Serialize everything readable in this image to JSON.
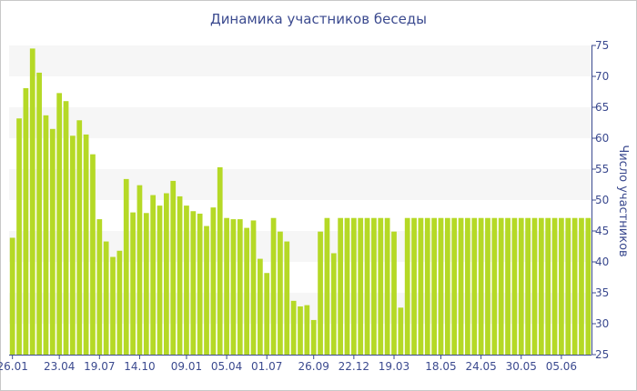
{
  "chart_data": {
    "type": "bar",
    "title": "Динамика участников беседы",
    "xlabel": "",
    "ylabel": "Число участников",
    "ylim": [
      25,
      75
    ],
    "y_ticks": [
      25,
      30,
      35,
      40,
      45,
      50,
      55,
      60,
      65,
      70,
      75
    ],
    "x_tick_labels": [
      {
        "label": "26.01",
        "index": 0
      },
      {
        "label": "23.04",
        "index": 7
      },
      {
        "label": "19.07",
        "index": 13
      },
      {
        "label": "14.10",
        "index": 19
      },
      {
        "label": "09.01",
        "index": 26
      },
      {
        "label": "05.04",
        "index": 32
      },
      {
        "label": "01.07",
        "index": 38
      },
      {
        "label": "26.09",
        "index": 45
      },
      {
        "label": "22.12",
        "index": 51
      },
      {
        "label": "19.03",
        "index": 57
      },
      {
        "label": "18.05",
        "index": 64
      },
      {
        "label": "24.05",
        "index": 70
      },
      {
        "label": "30.05",
        "index": 76
      },
      {
        "label": "05.06",
        "index": 82
      }
    ],
    "series": [
      {
        "color": "#b5d926",
        "values": [
          43.9,
          63.2,
          68.1,
          74.5,
          70.6,
          63.7,
          61.5,
          67.3,
          66.0,
          60.4,
          62.9,
          60.6,
          57.4,
          46.9,
          43.3,
          40.8,
          41.8,
          53.4,
          48.0,
          52.4,
          47.9,
          50.8,
          49.1,
          51.1,
          53.1,
          50.6,
          49.1,
          48.2,
          47.8,
          45.8,
          48.8,
          55.3,
          47.1,
          46.9,
          46.9,
          45.5,
          46.7,
          40.5,
          38.2,
          47.1,
          44.9,
          43.3,
          33.7,
          32.8,
          33.0,
          30.6,
          44.9,
          47.1,
          41.4,
          47.1,
          47.1,
          47.1,
          47.1,
          47.1,
          47.1,
          47.1,
          47.1,
          44.9,
          32.6,
          47.1,
          47.1,
          47.1,
          47.1,
          47.1,
          47.1,
          47.1,
          47.1,
          47.1,
          47.1,
          47.1,
          47.1,
          47.1,
          47.1,
          47.1,
          47.1,
          47.1,
          47.1,
          47.1,
          47.1,
          47.1,
          47.1,
          47.1,
          47.1,
          47.1,
          47.1,
          47.1,
          47.1
        ]
      }
    ],
    "grid": true,
    "grid_band_color": "#f6f6f6",
    "axis_color": "#3b4a8f"
  }
}
